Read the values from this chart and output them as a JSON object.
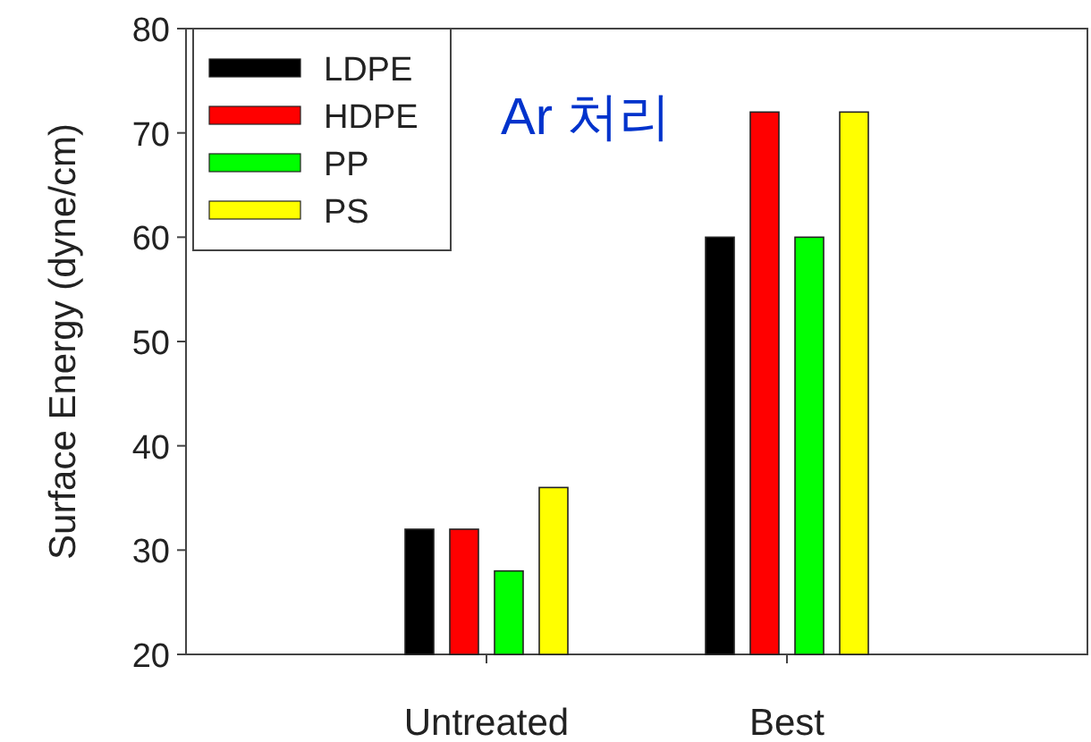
{
  "chart_data": {
    "type": "bar",
    "ylabel": "Surface Energy (dyne/cm)",
    "categories": [
      "Untreated",
      "Best"
    ],
    "series": [
      {
        "name": "LDPE",
        "color": "#000000",
        "values": [
          32,
          60
        ]
      },
      {
        "name": "HDPE",
        "color": "#ff0000",
        "values": [
          32,
          72
        ]
      },
      {
        "name": "PP",
        "color": "#00ff00",
        "values": [
          28,
          60
        ]
      },
      {
        "name": "PS",
        "color": "#ffff00",
        "values": [
          36,
          72
        ]
      }
    ],
    "ylim": [
      20,
      80
    ],
    "yticks": [
      20,
      30,
      40,
      50,
      60,
      70,
      80
    ],
    "annotations": [
      "Ar 처리"
    ],
    "legend": "top left",
    "grid": false
  }
}
